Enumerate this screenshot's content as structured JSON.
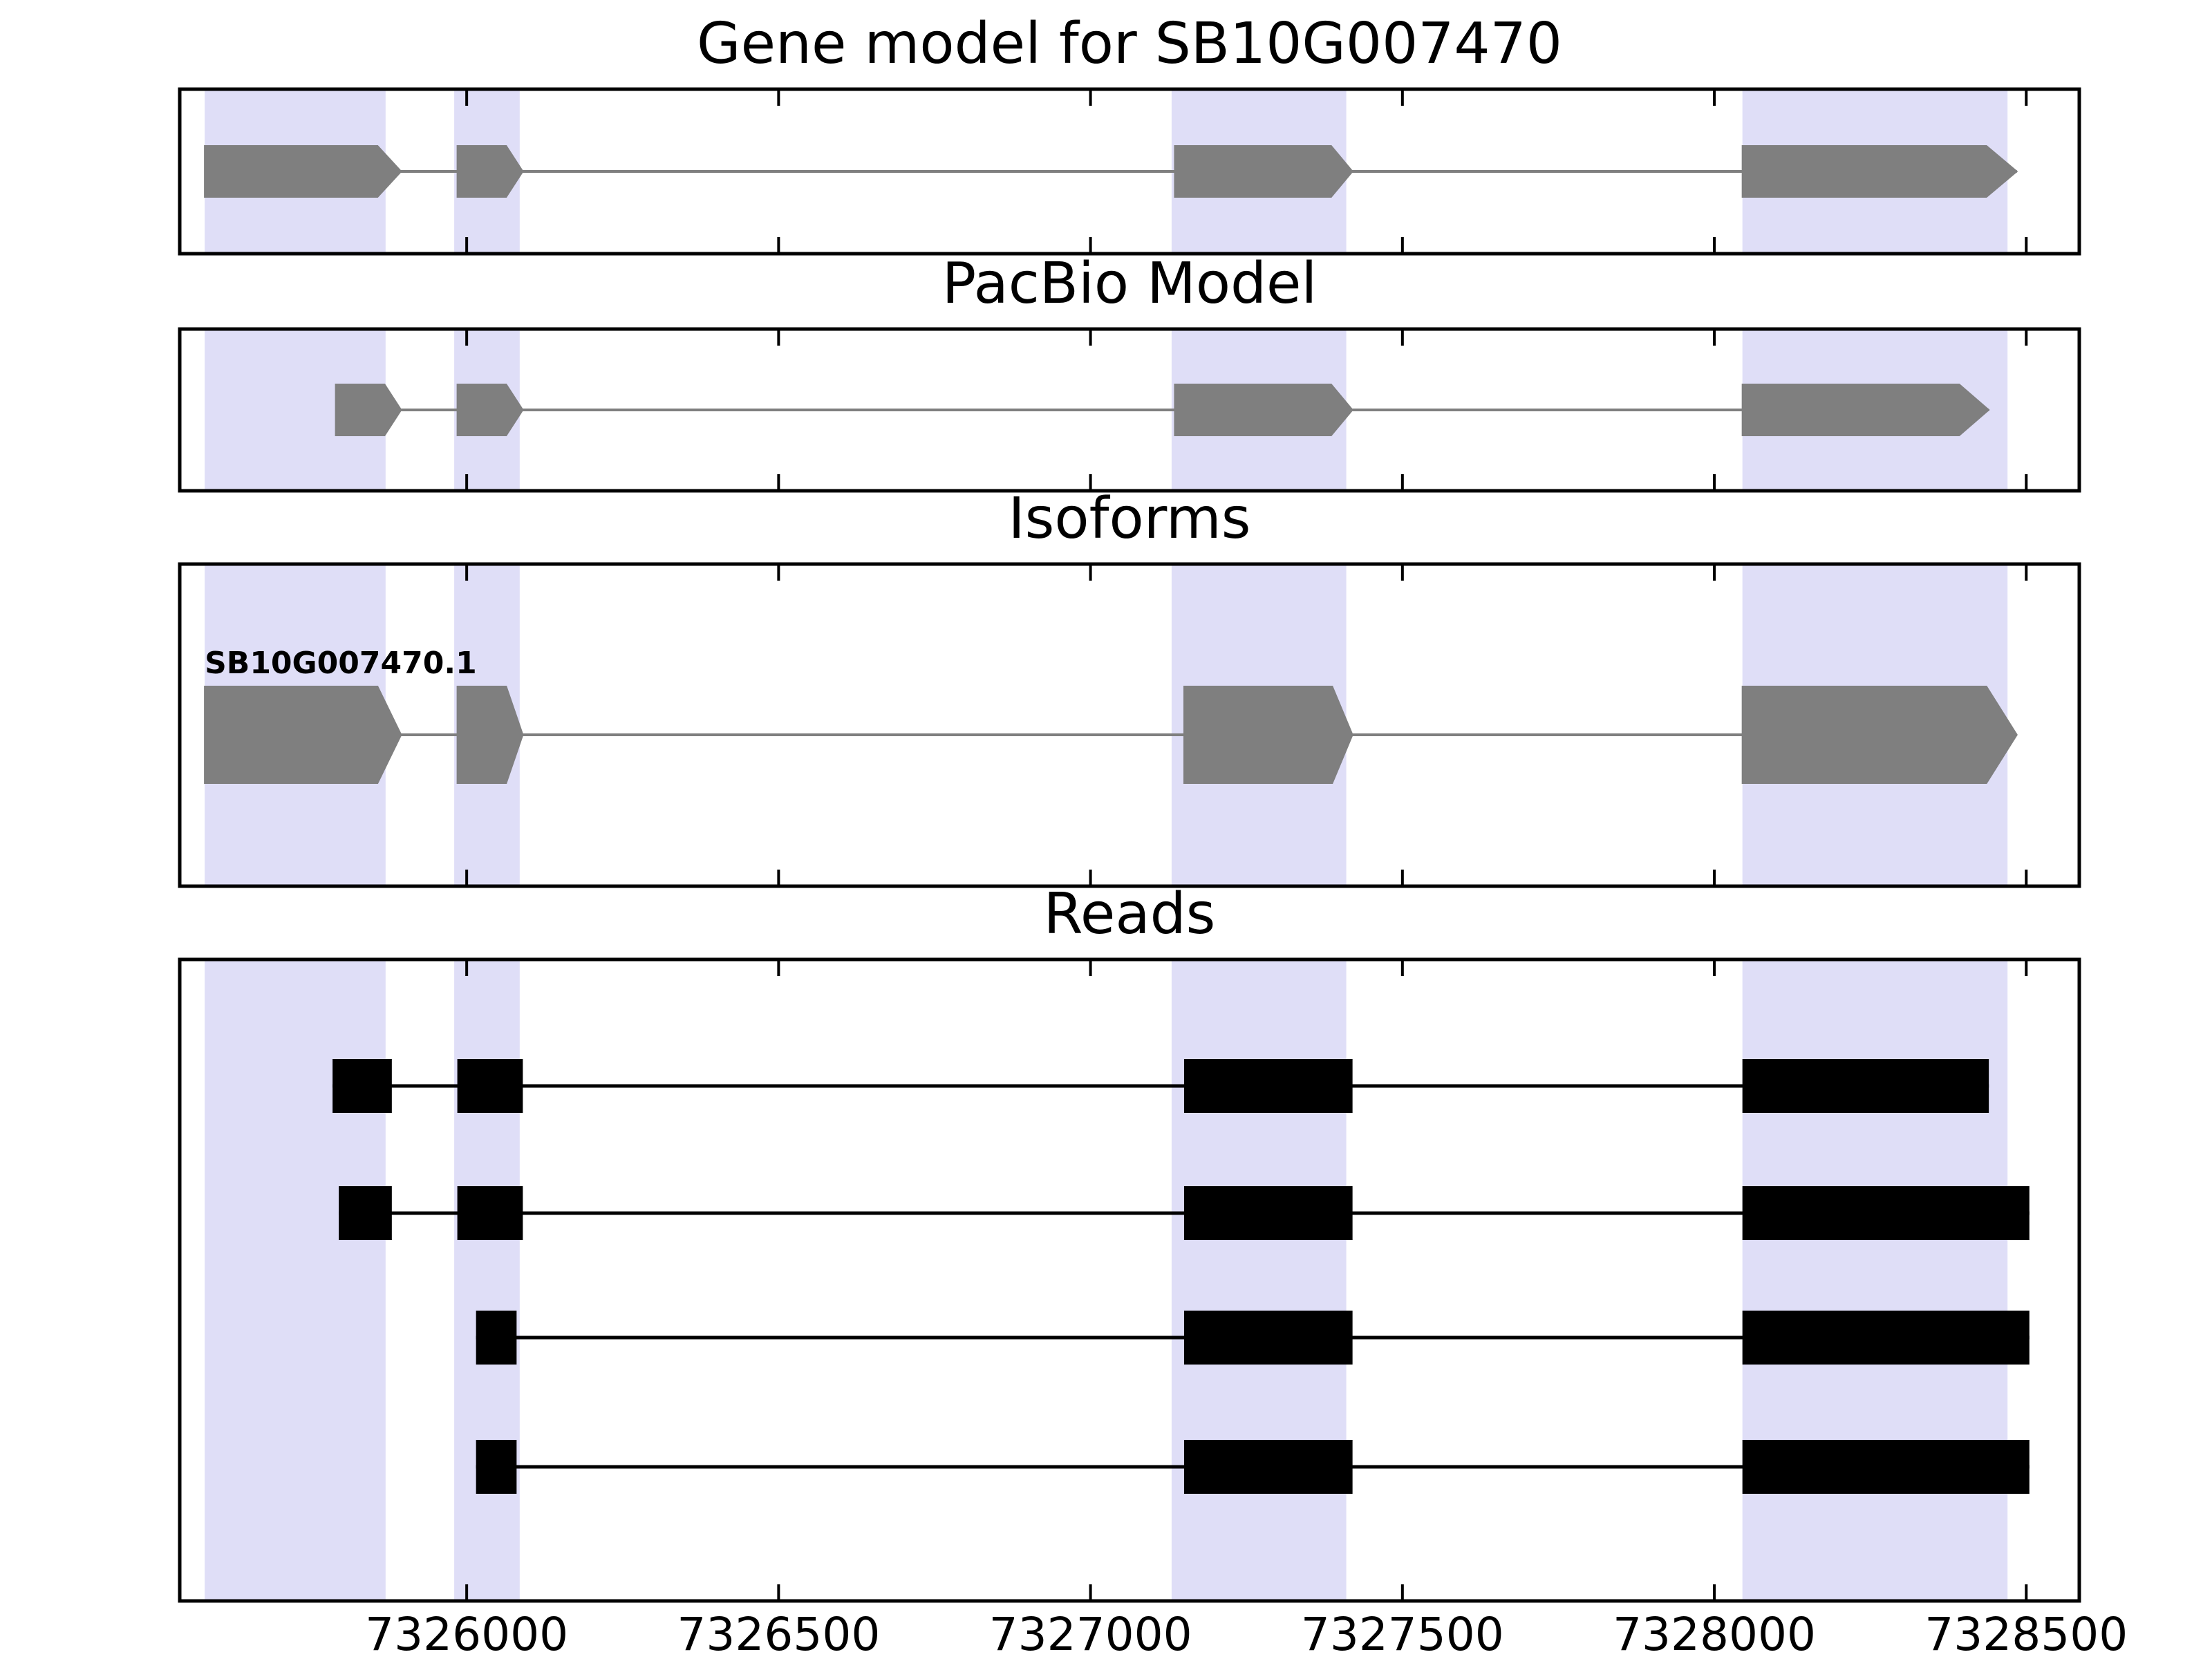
{
  "figure": {
    "background": "#ffffff"
  },
  "colors": {
    "highlight_band": "#dfdef7",
    "gene_fill": "#7f7f7f",
    "intron_line": "#7f7f7f",
    "read_fill": "#000000",
    "read_line": "#000000",
    "frame": "#000000",
    "text": "#000000"
  },
  "chart_data": {
    "type": "genomic-track-plot",
    "x_domain": [
      7325540,
      7328585
    ],
    "x_ticks": [
      7326000,
      7326500,
      7327000,
      7327500,
      7328000,
      7328500
    ],
    "x_tick_labels": [
      "7326000",
      "7326500",
      "7327000",
      "7327500",
      "7328000",
      "7328500"
    ],
    "highlight_regions": [
      {
        "start": 7325580,
        "end": 7325870
      },
      {
        "start": 7325980,
        "end": 7326085
      },
      {
        "start": 7327130,
        "end": 7327410
      },
      {
        "start": 7328045,
        "end": 7328470
      }
    ],
    "tracks": [
      {
        "title": "Gene model for SB10G007470",
        "kind": "transcripts",
        "features": [
          {
            "type": "transcript",
            "strand": "+",
            "exons": [
              [
                7325580,
                7325895
              ],
              [
                7325985,
                7326090
              ],
              [
                7327135,
                7327420
              ],
              [
                7328045,
                7328485
              ]
            ]
          }
        ]
      },
      {
        "title": "PacBio Model",
        "kind": "transcripts",
        "features": [
          {
            "type": "transcript",
            "strand": "+",
            "exons": [
              [
                7325790,
                7325895
              ],
              [
                7325985,
                7326090
              ],
              [
                7327135,
                7327420
              ],
              [
                7328045,
                7328440
              ]
            ]
          }
        ]
      },
      {
        "title": "Isoforms",
        "kind": "transcripts",
        "features": [
          {
            "type": "transcript",
            "label": "SB10G007470.1",
            "strand": "+",
            "exons": [
              [
                7325580,
                7325895
              ],
              [
                7325985,
                7326090
              ],
              [
                7327150,
                7327420
              ],
              [
                7328045,
                7328485
              ]
            ]
          }
        ]
      },
      {
        "title": "Reads",
        "kind": "reads",
        "features": [
          {
            "type": "read",
            "blocks": [
              [
                7325785,
                7325880
              ],
              [
                7325985,
                7326090
              ],
              [
                7327150,
                7327420
              ],
              [
                7328045,
                7328440
              ]
            ]
          },
          {
            "type": "read",
            "blocks": [
              [
                7325795,
                7325880
              ],
              [
                7325985,
                7326090
              ],
              [
                7327150,
                7327420
              ],
              [
                7328045,
                7328505
              ]
            ]
          },
          {
            "type": "read",
            "blocks": [
              [
                7326015,
                7326080
              ],
              [
                7327150,
                7327420
              ],
              [
                7328045,
                7328505
              ]
            ]
          },
          {
            "type": "read",
            "blocks": [
              [
                7326015,
                7326080
              ],
              [
                7327150,
                7327420
              ],
              [
                7328045,
                7328505
              ]
            ]
          }
        ]
      }
    ]
  }
}
